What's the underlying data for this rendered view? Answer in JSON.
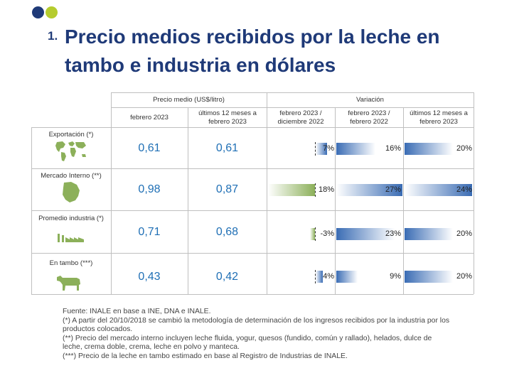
{
  "title": {
    "number": "1.",
    "text": "Precio medios recibidos por la leche en tambo e industria en dólares"
  },
  "table": {
    "group_headers": {
      "price": "Precio medio (US$/litro)",
      "variation": "Variación"
    },
    "column_headers": [
      "febrero 2023",
      "últimos 12 meses a febrero 2023",
      "febrero 2023 / diciembre 2022",
      "febrero 2023 / febrero 2022",
      "últimos 12 meses a febrero 2023"
    ],
    "rows": [
      {
        "label": "Exportación (*)",
        "icon": "world-map-icon",
        "price_feb": "0,61",
        "price_12m": "0,61",
        "var_dec": "7%",
        "var_feb": "16%",
        "var_12m": "20%",
        "var_dec_value": 7,
        "var_feb_value": 16,
        "var_12m_value": 20
      },
      {
        "label": "Mercado Interno (**)",
        "icon": "uruguay-map-icon",
        "price_feb": "0,98",
        "price_12m": "0,87",
        "var_dec": "18%",
        "var_feb": "27%",
        "var_12m": "24%",
        "var_dec_value": 18,
        "var_feb_value": 27,
        "var_12m_value": 24
      },
      {
        "label": "Promedio industria (*)",
        "icon": "factory-icon",
        "price_feb": "0,71",
        "price_12m": "0,68",
        "var_dec": "-3%",
        "var_feb": "23%",
        "var_12m": "20%",
        "var_dec_value": -3,
        "var_feb_value": 23,
        "var_12m_value": 20
      },
      {
        "label": "En tambo (***)",
        "icon": "cow-icon",
        "price_feb": "0,43",
        "price_12m": "0,42",
        "var_dec": "4%",
        "var_feb": "9%",
        "var_12m": "20%",
        "var_dec_value": 4,
        "var_feb_value": 9,
        "var_12m_value": 20
      }
    ]
  },
  "notes": [
    "Fuente: INALE en base a INE, DNA e INALE.",
    "(*) A partir del 20/10/2018 se cambió la metodología de determinación de los ingresos recibidos por la industria por los productos colocados.",
    "(**) Precio del mercado interno incluyen leche fluida, yogur, quesos (fundido, común y rallado), helados, dulce de leche, crema doble, crema, leche en polvo y manteca.",
    "(***) Precio de la leche en tambo estimado en base al Registro de Industrias de INALE."
  ],
  "colors": {
    "title": "#1f3a78",
    "accent_green": "#b5cc2e",
    "value_blue": "#1f6fb5",
    "bar_blue": "#3a6cb4",
    "bar_green": "#8cb05a"
  }
}
